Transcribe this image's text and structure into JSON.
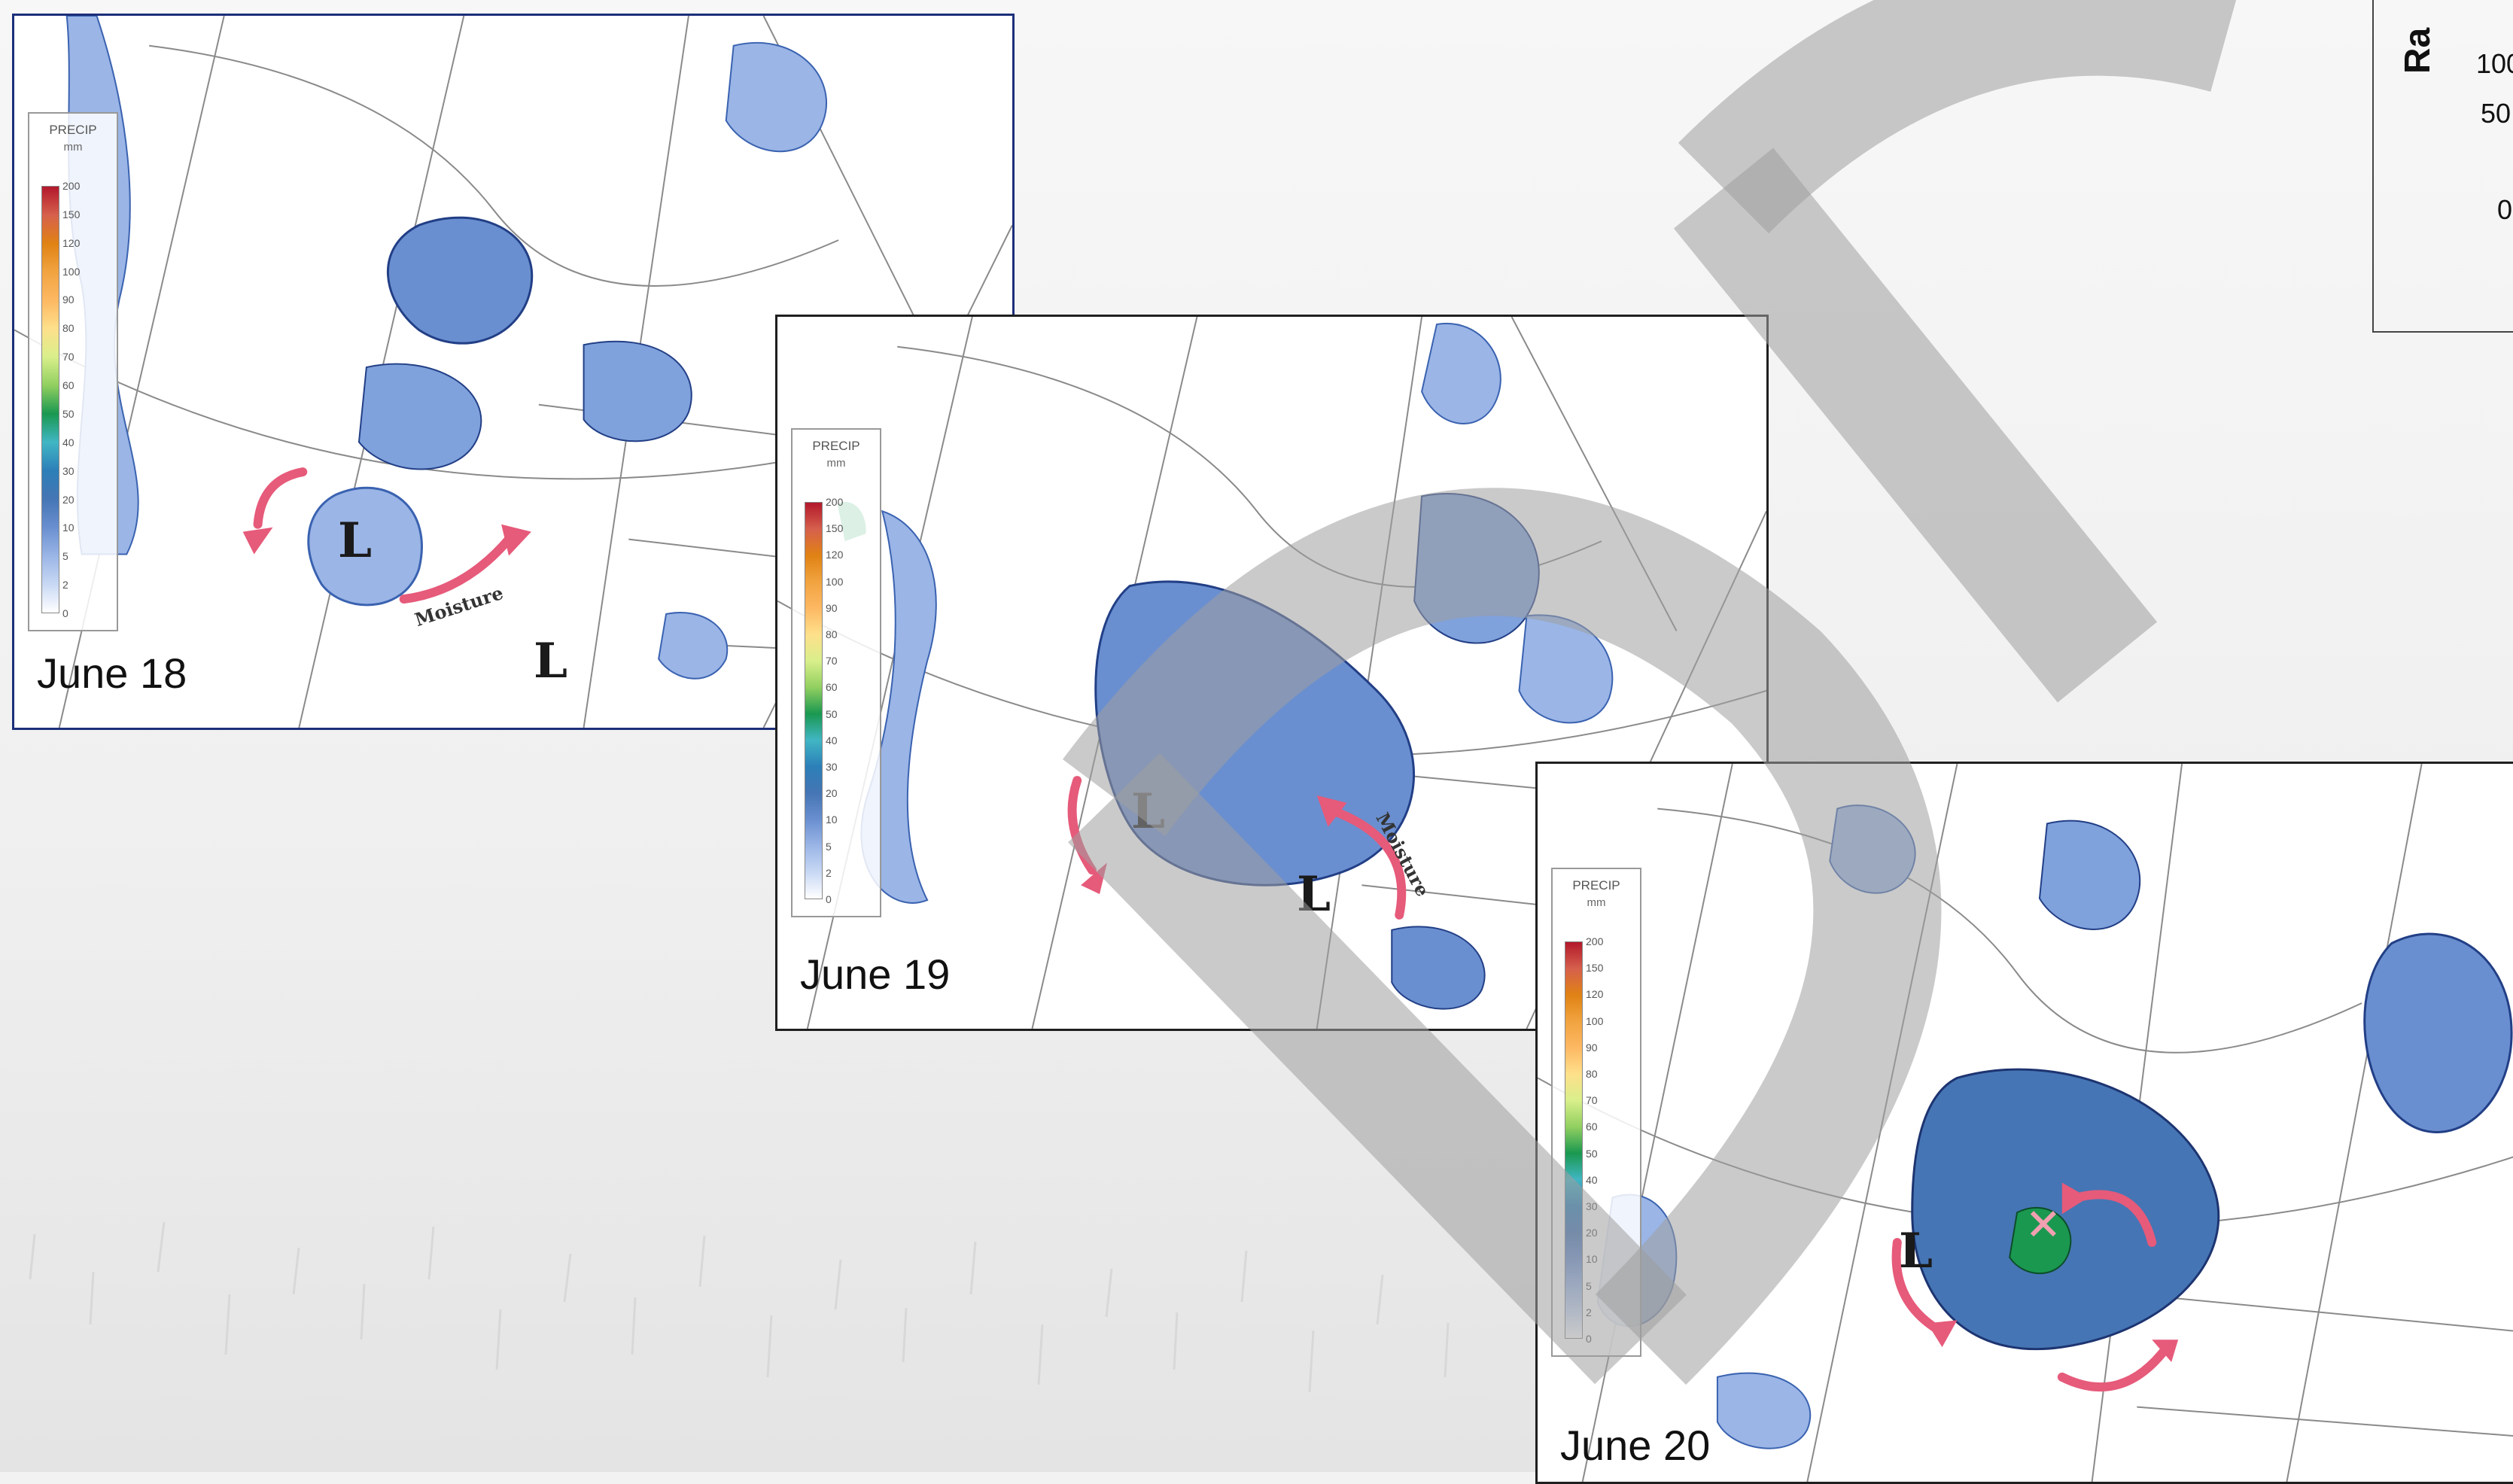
{
  "panels": [
    {
      "id": "p18",
      "date": "June 18",
      "low_labels": [
        "L",
        "L"
      ],
      "moisture_label": "Moisture"
    },
    {
      "id": "p19",
      "date": "June 19",
      "low_labels": [
        "L",
        "L"
      ],
      "moisture_label": "Moisture"
    },
    {
      "id": "p20",
      "date": "June 20",
      "low_labels": [
        "L"
      ],
      "moisture_label": ""
    }
  ],
  "legend": {
    "title": "PRECIP",
    "unit": "mm",
    "ticks": [
      "200",
      "150",
      "120",
      "100",
      "90",
      "80",
      "70",
      "60",
      "50",
      "40",
      "30",
      "20",
      "10",
      "5",
      "2",
      "0"
    ],
    "colors": [
      "#b2182b",
      "#d6604d",
      "#e08214",
      "#f1a340",
      "#fdb863",
      "#fee08b",
      "#d9ef8b",
      "#91cf60",
      "#1a9850",
      "#41b6c4",
      "#2c7fb8",
      "#4575b4",
      "#6a8fd0",
      "#9ab5e6",
      "#c8d8f4",
      "#ffffff"
    ]
  },
  "axis_fragment": {
    "title": "Ra",
    "ticks": [
      "100",
      "50",
      "0"
    ]
  },
  "colors": {
    "precip_light": "#c9d9f2",
    "precip_mid": "#7fa1dc",
    "precip_dark": "#3a62b0",
    "arrow": "#e65a7a"
  }
}
